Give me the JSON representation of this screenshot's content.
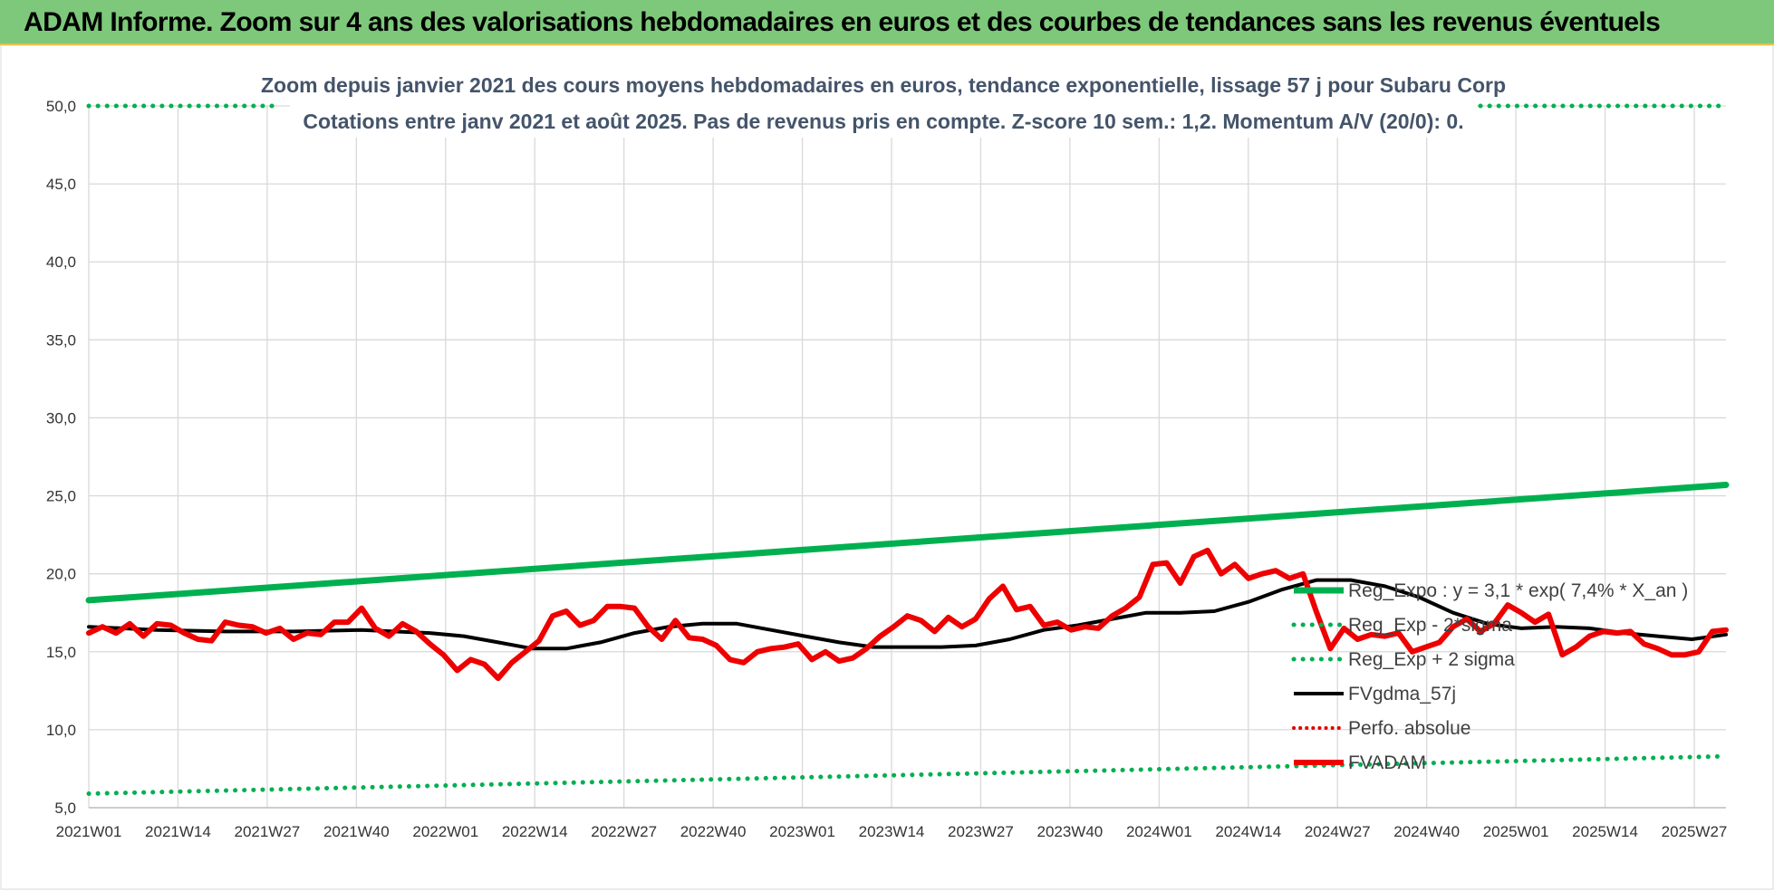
{
  "header": {
    "title": "ADAM Informe. Zoom sur 4 ans des valorisations hebdomadaires en euros et des courbes de tendances sans les revenus éventuels"
  },
  "colors": {
    "header_bg": "#7dc87a",
    "reg_expo": "#00b050",
    "sigma": "#00b050",
    "fvgdma": "#000000",
    "perfo": "#e00000",
    "fvadam": "#ee0000"
  },
  "chart_data": {
    "type": "line",
    "title": "Zoom depuis janvier 2021 des cours moyens hebdomadaires en euros, tendance exponentielle, lissage 57 j pour Subaru Corp",
    "subtitle": "Cotations entre janv 2021 et août 2025.  Pas de revenus pris en compte. Z-score 10 sem.: 1,2. Momentum A/V (20/0): 0.",
    "ylim": [
      5,
      50
    ],
    "y_ticks": [
      "5,0",
      "10,0",
      "15,0",
      "20,0",
      "25,0",
      "30,0",
      "35,0",
      "40,0",
      "45,0",
      "50,0"
    ],
    "y_tick_values": [
      5,
      10,
      15,
      20,
      25,
      30,
      35,
      40,
      45,
      50
    ],
    "x_ticks": [
      "2021W01",
      "2021W14",
      "2021W27",
      "2021W40",
      "2022W01",
      "2022W14",
      "2022W27",
      "2022W40",
      "2023W01",
      "2023W14",
      "2023W27",
      "2023W40",
      "2024W01",
      "2024W14",
      "2024W27",
      "2024W40",
      "2025W01",
      "2025W14",
      "2025W27"
    ],
    "x_range_weeks": [
      0,
      240
    ],
    "grid": true,
    "legend_position": "right",
    "series": [
      {
        "name": "Reg_Expo : y = 3,1 * exp( 7,4% *  X_an )",
        "style": "solid-thick",
        "x": [
          0,
          240
        ],
        "values": [
          18.3,
          25.7
        ]
      },
      {
        "name": "Reg_Exp - 2*sigma",
        "style": "dotted",
        "x": [
          0,
          240
        ],
        "values": [
          5.9,
          8.3
        ]
      },
      {
        "name": "Reg_Exp + 2 sigma",
        "style": "dotted",
        "x": [
          0,
          28,
          204,
          240
        ],
        "values": [
          50,
          50,
          50,
          50
        ],
        "gap_after_index": 1
      },
      {
        "name": "FVgdma_57j",
        "style": "solid",
        "x": [
          0,
          10,
          20,
          30,
          40,
          50,
          55,
          60,
          65,
          70,
          75,
          80,
          85,
          90,
          95,
          100,
          105,
          110,
          115,
          120,
          125,
          130,
          135,
          140,
          145,
          150,
          155,
          160,
          165,
          170,
          175,
          180,
          185,
          190,
          195,
          200,
          205,
          210,
          215,
          220,
          225,
          230,
          235,
          240
        ],
        "values": [
          16.6,
          16.4,
          16.3,
          16.3,
          16.4,
          16.2,
          16.0,
          15.6,
          15.2,
          15.2,
          15.6,
          16.2,
          16.6,
          16.8,
          16.8,
          16.4,
          16.0,
          15.6,
          15.3,
          15.3,
          15.3,
          15.4,
          15.8,
          16.4,
          16.7,
          17.1,
          17.5,
          17.5,
          17.6,
          18.2,
          19.0,
          19.6,
          19.6,
          19.2,
          18.5,
          17.5,
          16.8,
          16.5,
          16.6,
          16.5,
          16.2,
          16.0,
          15.8,
          16.1
        ]
      },
      {
        "name": "Perfo. absolue",
        "style": "dotted",
        "x": [],
        "values": []
      },
      {
        "name": "FVADAM",
        "style": "solid-thick",
        "x": [
          0,
          2,
          4,
          6,
          8,
          10,
          12,
          14,
          16,
          18,
          20,
          22,
          24,
          26,
          28,
          30,
          32,
          34,
          36,
          38,
          40,
          42,
          44,
          46,
          48,
          50,
          52,
          54,
          56,
          58,
          60,
          62,
          64,
          66,
          68,
          70,
          72,
          74,
          76,
          78,
          80,
          82,
          84,
          86,
          88,
          90,
          92,
          94,
          96,
          98,
          100,
          102,
          104,
          106,
          108,
          110,
          112,
          114,
          116,
          118,
          120,
          122,
          124,
          126,
          128,
          130,
          132,
          134,
          136,
          138,
          140,
          142,
          144,
          146,
          148,
          150,
          152,
          154,
          156,
          158,
          160,
          162,
          164,
          166,
          168,
          170,
          172,
          174,
          176,
          178,
          180,
          182,
          184,
          186,
          188,
          190,
          192,
          194,
          196,
          198,
          200,
          202,
          204,
          206,
          208,
          210,
          212,
          214,
          216,
          218,
          220,
          222,
          224,
          226,
          228,
          230,
          232,
          234,
          236,
          238,
          240
        ],
        "values": [
          16.2,
          16.6,
          16.2,
          16.8,
          16.0,
          16.8,
          16.7,
          16.2,
          15.8,
          15.7,
          16.9,
          16.7,
          16.6,
          16.2,
          16.5,
          15.8,
          16.2,
          16.1,
          16.9,
          16.9,
          17.8,
          16.5,
          16.0,
          16.8,
          16.3,
          15.5,
          14.8,
          13.8,
          14.5,
          14.2,
          13.3,
          14.3,
          15.0,
          15.7,
          17.3,
          17.6,
          16.7,
          17.0,
          17.9,
          17.9,
          17.8,
          16.6,
          15.8,
          17.0,
          15.9,
          15.8,
          15.4,
          14.5,
          14.3,
          15.0,
          15.2,
          15.3,
          15.5,
          14.5,
          15.0,
          14.4,
          14.6,
          15.2,
          16.0,
          16.6,
          17.3,
          17.0,
          16.3,
          17.2,
          16.6,
          17.1,
          18.4,
          19.2,
          17.7,
          17.9,
          16.7,
          16.9,
          16.4,
          16.6,
          16.5,
          17.3,
          17.8,
          18.5,
          20.6,
          20.7,
          19.4,
          21.1,
          21.5,
          20.0,
          20.6,
          19.7,
          20.0,
          20.2,
          19.7,
          20.0,
          17.5,
          15.2,
          16.5,
          15.8,
          16.1,
          16.0,
          16.2,
          15.0,
          15.3,
          15.6,
          16.6,
          17.1,
          16.3,
          16.8,
          18.0,
          17.5,
          16.9,
          17.4,
          14.8,
          15.3,
          16.0,
          16.3,
          16.2,
          16.3,
          15.5,
          15.2,
          14.8,
          14.8,
          15.0,
          16.3,
          16.4
        ]
      }
    ]
  }
}
